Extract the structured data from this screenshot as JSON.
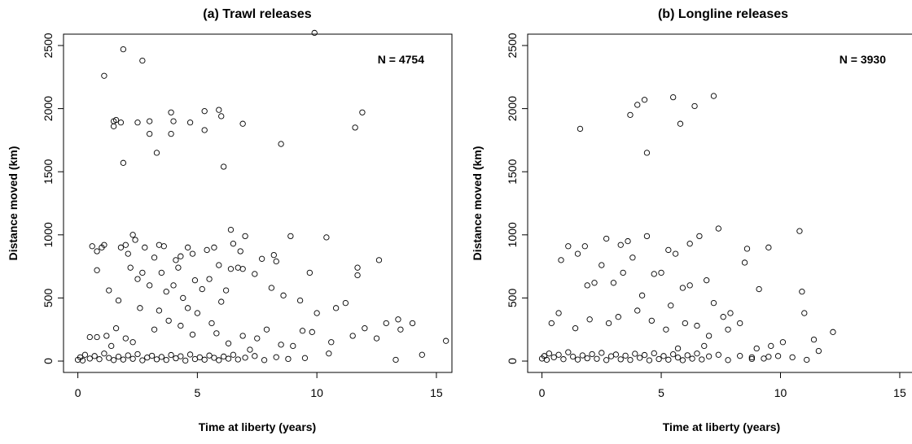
{
  "chart_data": [
    {
      "type": "scatter",
      "title": "(a) Trawl releases",
      "x_label": "Time at liberty (years)",
      "y_label": "Distance moved (km)",
      "annotation": "N = 4754",
      "color": "#000000",
      "xlim": [
        -0.6,
        15.65
      ],
      "ylim": [
        -90,
        2590
      ],
      "xticks": [
        0,
        5,
        10,
        15
      ],
      "yticks": [
        0,
        500,
        1000,
        1500,
        2000,
        2500
      ],
      "x": [
        9.9,
        1.9,
        2.7,
        1.1,
        1.5,
        1.6,
        1.8,
        1.5,
        2.5,
        3.0,
        3.0,
        3.3,
        1.9,
        3.9,
        4.0,
        3.9,
        4.7,
        5.3,
        5.3,
        5.9,
        6.0,
        6.1,
        6.9,
        8.5,
        11.6,
        11.9,
        0.6,
        1.0,
        1.1,
        0.8,
        1.8,
        2.0,
        2.3,
        2.4,
        2.1,
        2.8,
        3.4,
        3.6,
        3.2,
        4.1,
        4.3,
        4.6,
        4.8,
        5.4,
        5.7,
        6.4,
        6.5,
        6.8,
        7.0,
        7.7,
        8.2,
        8.3,
        8.9,
        10.4,
        11.7,
        11.7,
        12.6,
        9.7,
        0.8,
        1.3,
        1.7,
        2.2,
        2.5,
        2.7,
        3.0,
        3.5,
        3.7,
        4.0,
        4.2,
        4.4,
        4.9,
        5.2,
        5.5,
        5.9,
        6.2,
        6.4,
        6.7,
        6.9,
        7.4,
        8.1,
        8.6,
        9.3,
        10.0,
        10.8,
        11.2,
        13.4,
        14.0,
        13.5,
        14.4,
        15.4,
        13.3,
        12.5,
        12.0,
        11.5,
        10.6,
        10.5,
        9.8,
        9.4,
        9.0,
        8.5,
        7.9,
        7.5,
        7.2,
        6.9,
        6.3,
        0.8,
        0.5,
        1.2,
        1.6,
        2.0,
        2.6,
        3.4,
        3.8,
        4.3,
        4.6,
        5.0,
        5.6,
        6.0,
        5.8,
        4.8,
        3.2,
        2.3,
        1.4,
        12.9,
        0.0,
        0.1,
        0.2,
        0.3,
        0.5,
        0.7,
        0.9,
        1.1,
        1.3,
        1.5,
        1.7,
        1.9,
        2.1,
        2.3,
        2.5,
        2.7,
        2.9,
        3.1,
        3.3,
        3.5,
        3.7,
        3.9,
        4.1,
        4.3,
        4.5,
        4.7,
        4.9,
        5.1,
        5.3,
        5.5,
        5.7,
        5.9,
        6.1,
        6.3,
        6.5,
        6.7,
        7.0,
        7.4,
        7.8,
        8.3,
        8.8,
        9.5
      ],
      "values": [
        2600,
        2470,
        2380,
        2260,
        1900,
        1910,
        1890,
        1860,
        1890,
        1900,
        1800,
        1650,
        1570,
        1970,
        1900,
        1800,
        1890,
        1980,
        1830,
        1990,
        1940,
        1540,
        1880,
        1720,
        1850,
        1970,
        910,
        900,
        920,
        870,
        900,
        920,
        1000,
        960,
        850,
        900,
        920,
        910,
        820,
        800,
        830,
        900,
        850,
        880,
        900,
        1040,
        930,
        870,
        990,
        810,
        840,
        790,
        990,
        980,
        740,
        680,
        800,
        700,
        720,
        560,
        480,
        740,
        650,
        700,
        600,
        700,
        550,
        600,
        740,
        500,
        640,
        570,
        650,
        760,
        560,
        730,
        740,
        730,
        690,
        580,
        520,
        480,
        380,
        420,
        460,
        330,
        300,
        250,
        50,
        160,
        10,
        180,
        260,
        200,
        150,
        60,
        230,
        240,
        120,
        130,
        250,
        180,
        90,
        200,
        140,
        190,
        190,
        200,
        260,
        180,
        420,
        400,
        320,
        280,
        420,
        380,
        300,
        470,
        220,
        210,
        250,
        150,
        120,
        300,
        10,
        30,
        5,
        50,
        20,
        40,
        15,
        60,
        25,
        8,
        35,
        12,
        45,
        18,
        55,
        6,
        28,
        42,
        14,
        33,
        9,
        48,
        22,
        38,
        4,
        52,
        16,
        30,
        11,
        44,
        26,
        7,
        36,
        19,
        50,
        13,
        27,
        40,
        8,
        31,
        17,
        24
      ]
    },
    {
      "type": "scatter",
      "title": "(b) Longline releases",
      "x_label": "Time at liberty (years)",
      "y_label": "Distance moved (km)",
      "annotation": "N = 3930",
      "color": "#000000",
      "xlim": [
        -0.6,
        15.65
      ],
      "ylim": [
        -90,
        2590
      ],
      "xticks": [
        0,
        5,
        10,
        15
      ],
      "yticks": [
        0,
        500,
        1000,
        1500,
        2000,
        2500
      ],
      "x": [
        7.2,
        5.5,
        4.3,
        4.0,
        3.7,
        6.4,
        5.8,
        4.4,
        1.6,
        1.1,
        1.5,
        1.8,
        2.7,
        3.3,
        3.6,
        4.4,
        5.3,
        5.6,
        6.2,
        6.6,
        7.4,
        8.6,
        9.5,
        10.8,
        0.8,
        1.9,
        2.2,
        2.5,
        3.0,
        3.4,
        3.8,
        4.2,
        4.7,
        5.0,
        5.4,
        5.9,
        6.2,
        6.9,
        7.2,
        7.6,
        7.9,
        8.5,
        9.1,
        10.9,
        11.0,
        12.2,
        11.4,
        10.1,
        9.6,
        9.0,
        8.3,
        7.8,
        7.0,
        6.5,
        6.0,
        5.2,
        4.6,
        4.0,
        3.2,
        2.8,
        2.0,
        1.4,
        0.7,
        0.4,
        11.6,
        11.1,
        10.5,
        9.9,
        9.3,
        8.8,
        6.8,
        5.7,
        0.0,
        0.1,
        0.2,
        0.3,
        0.5,
        0.7,
        0.9,
        1.1,
        1.3,
        1.5,
        1.7,
        1.9,
        2.1,
        2.3,
        2.5,
        2.7,
        2.9,
        3.1,
        3.3,
        3.5,
        3.7,
        3.9,
        4.1,
        4.3,
        4.5,
        4.7,
        4.9,
        5.1,
        5.3,
        5.5,
        5.7,
        5.9,
        6.1,
        6.3,
        6.5,
        6.7,
        7.0,
        7.4,
        7.8,
        8.3,
        8.8,
        9.5
      ],
      "values": [
        2100,
        2090,
        2070,
        2030,
        1950,
        2020,
        1880,
        1650,
        1840,
        910,
        850,
        910,
        970,
        920,
        950,
        990,
        880,
        850,
        930,
        990,
        1050,
        890,
        900,
        1030,
        800,
        600,
        620,
        760,
        620,
        700,
        820,
        520,
        690,
        700,
        440,
        580,
        600,
        640,
        460,
        350,
        380,
        780,
        570,
        550,
        380,
        230,
        170,
        150,
        120,
        100,
        300,
        250,
        200,
        280,
        300,
        250,
        320,
        400,
        350,
        300,
        330,
        260,
        380,
        300,
        80,
        10,
        30,
        40,
        20,
        30,
        120,
        100,
        20,
        40,
        10,
        60,
        30,
        50,
        15,
        70,
        35,
        12,
        45,
        22,
        55,
        18,
        65,
        8,
        38,
        52,
        14,
        43,
        9,
        58,
        26,
        48,
        6,
        62,
        16,
        40,
        11,
        54,
        28,
        7,
        46,
        19,
        60,
        13,
        37,
        50,
        8,
        41,
        17,
        34
      ]
    }
  ]
}
